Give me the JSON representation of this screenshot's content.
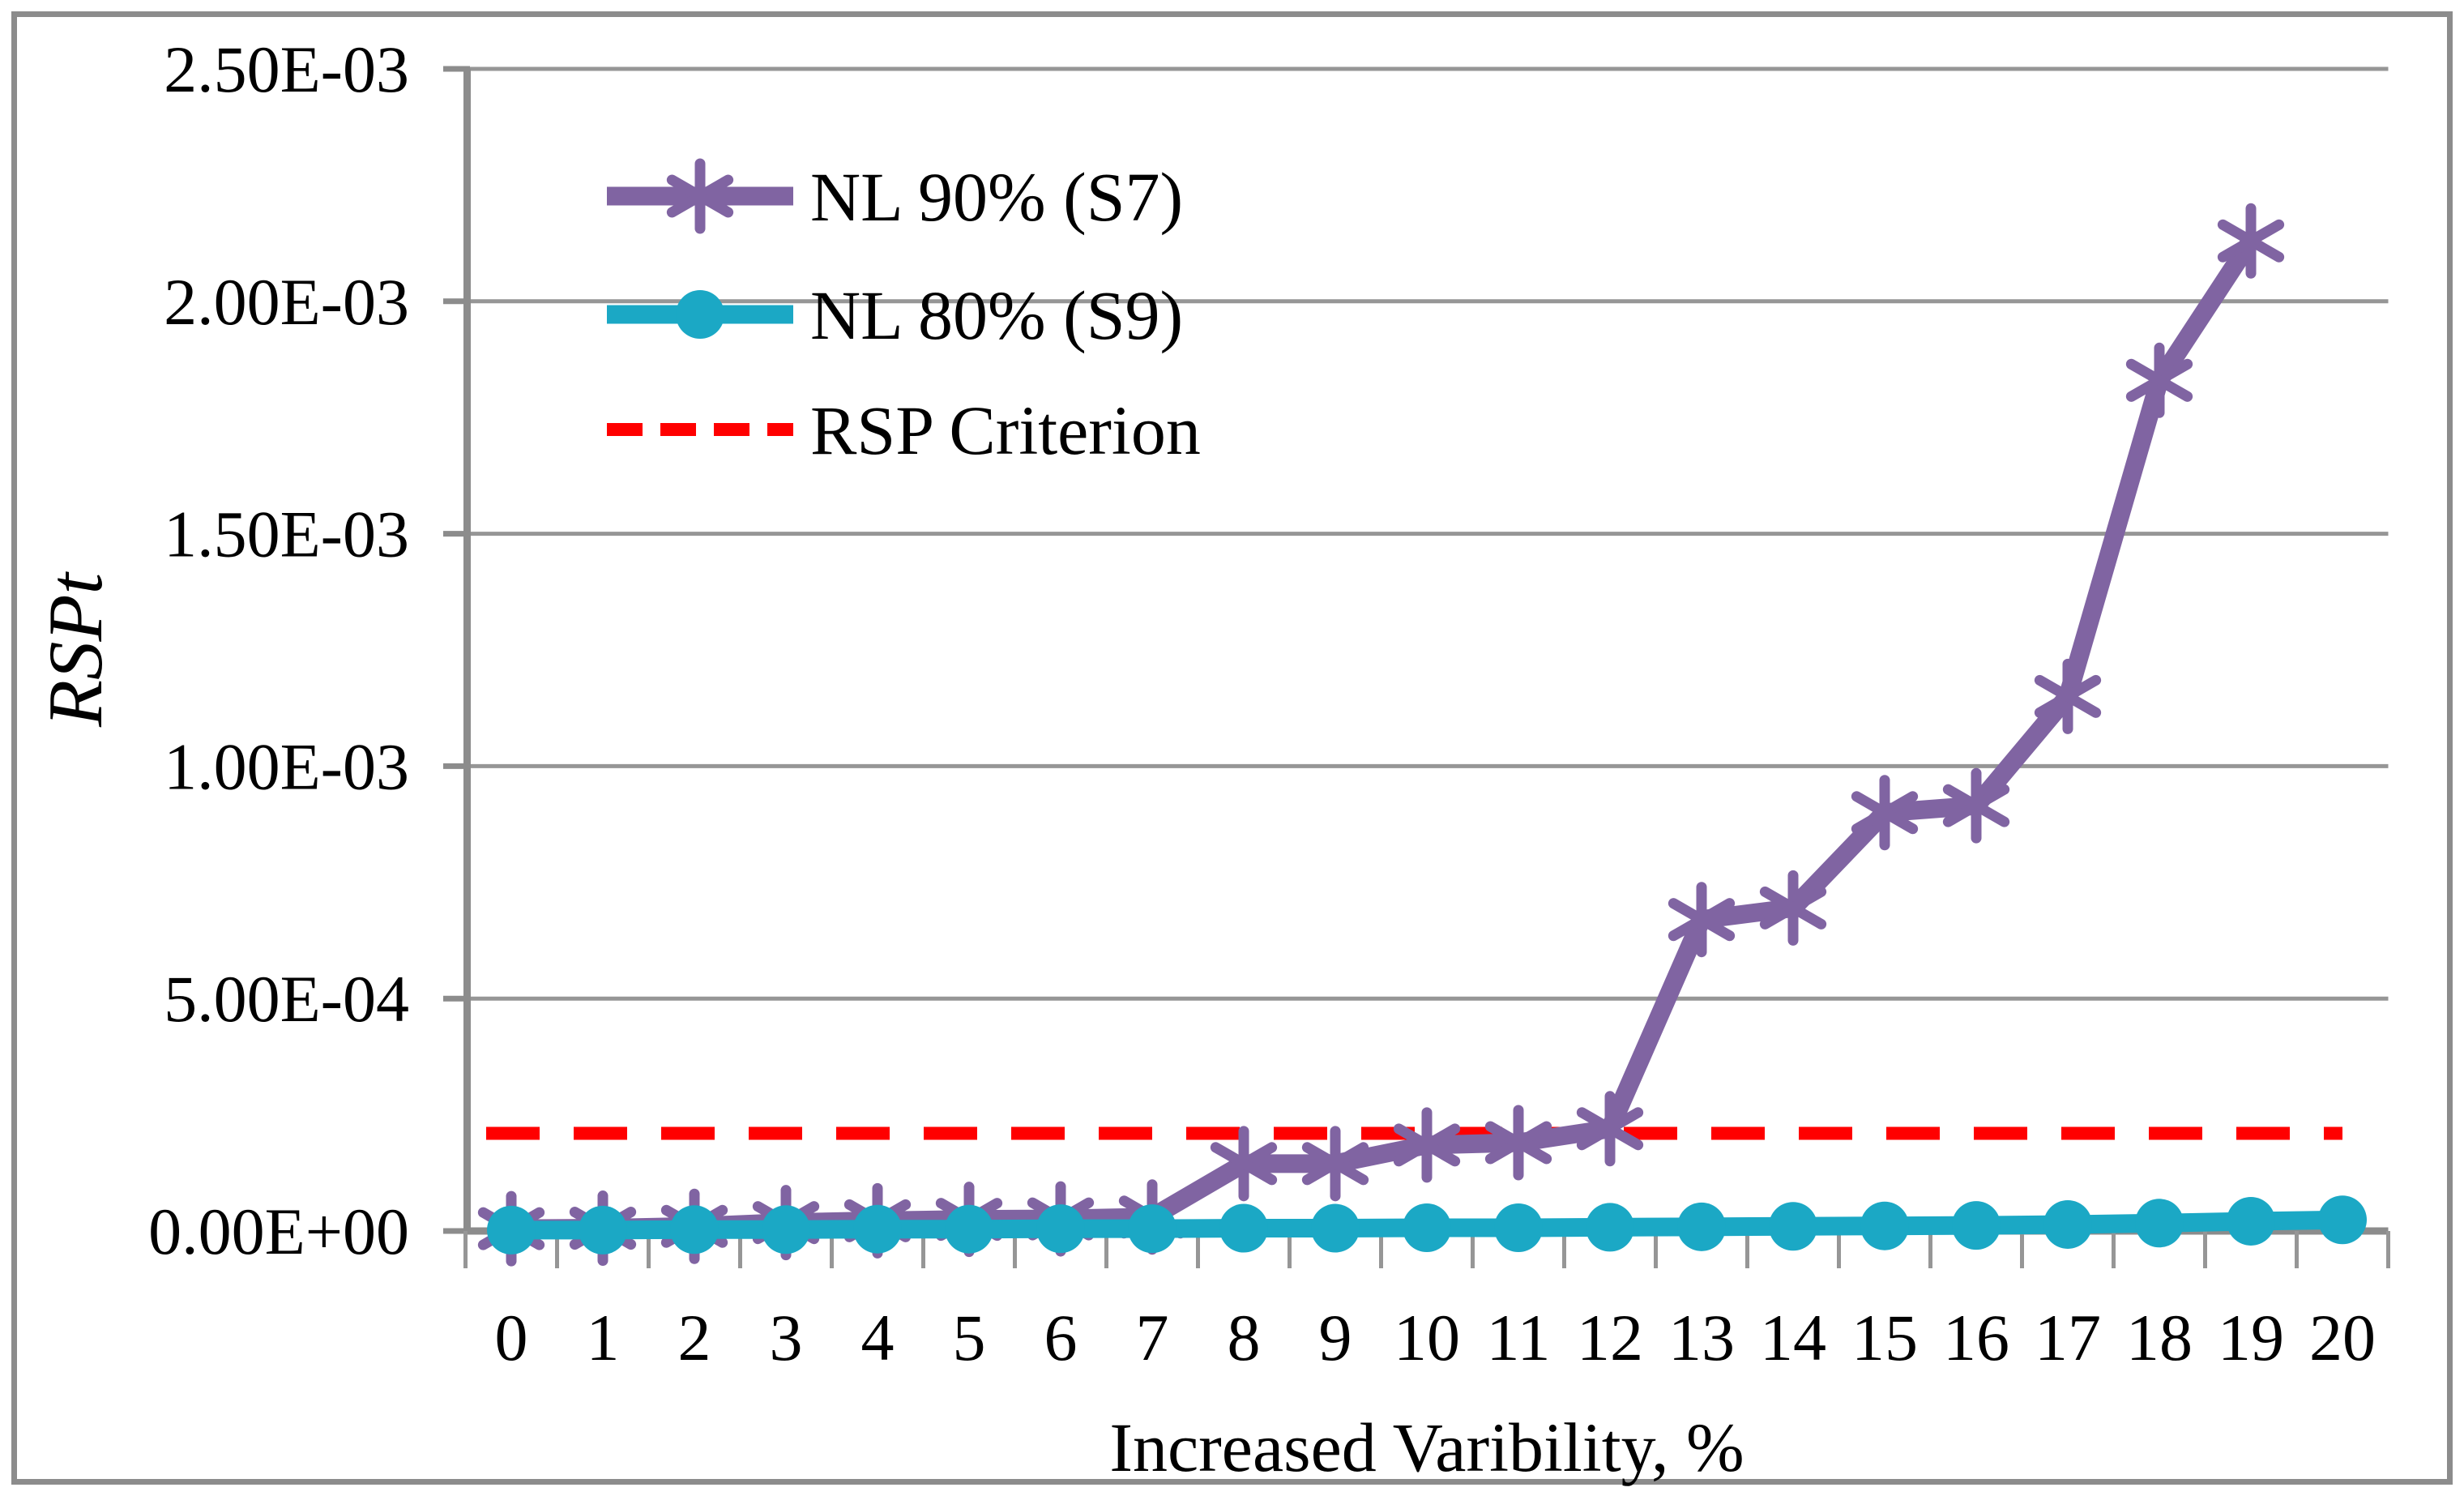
{
  "figure": {
    "background": "#FFFFFF",
    "frame_color": "#8C8C8C",
    "gridline_color": "#969696",
    "axis_color": "#8C8C8C",
    "text_color": "#000000"
  },
  "chart_data": {
    "type": "line",
    "title": "",
    "xlabel": "Increased Varibility, %",
    "ylabel": "RSPt",
    "x_tick_labels": [
      "0",
      "1",
      "2",
      "3",
      "4",
      "5",
      "6",
      "7",
      "8",
      "9",
      "10",
      "11",
      "12",
      "13",
      "14",
      "15",
      "16",
      "17",
      "18",
      "19",
      "20"
    ],
    "y_tick_labels": [
      "0.00E+00",
      "5.00E-04",
      "1.00E-03",
      "1.50E-03",
      "2.00E-03",
      "2.50E-03"
    ],
    "y_ticks": [
      0,
      0.0005,
      0.001,
      0.0015,
      0.002,
      0.0025
    ],
    "ylim": [
      0,
      0.0025
    ],
    "grid": true,
    "legend_position": "upper-left-inside",
    "series": [
      {
        "name": "NL 90% (S7)",
        "color": "#8064A2",
        "marker": "asterisk",
        "line_style": "solid",
        "x": [
          0,
          1,
          2,
          3,
          4,
          5,
          6,
          7,
          8,
          9,
          10,
          11,
          12,
          13,
          14,
          15,
          16,
          17,
          18,
          19
        ],
        "values": [
          5e-06,
          6e-06,
          1e-05,
          1.8e-05,
          2.2e-05,
          2.5e-05,
          2.6e-05,
          3e-05,
          0.000145,
          0.000145,
          0.000185,
          0.00019,
          0.00022,
          0.00067,
          0.000695,
          0.0009,
          0.000915,
          0.00115,
          0.00183,
          0.00213
        ]
      },
      {
        "name": "NL 80% (S9)",
        "color": "#1BA8C5",
        "marker": "circle",
        "line_style": "solid",
        "x": [
          0,
          1,
          2,
          3,
          4,
          5,
          6,
          7,
          8,
          9,
          10,
          11,
          12,
          13,
          14,
          15,
          16,
          17,
          18,
          19,
          20
        ],
        "values": [
          2e-06,
          2e-06,
          3e-06,
          3e-06,
          4e-06,
          4e-06,
          5e-06,
          5e-06,
          6e-06,
          6e-06,
          7e-06,
          7e-06,
          8e-06,
          9e-06,
          1e-05,
          1.1e-05,
          1.2e-05,
          1.4e-05,
          1.7e-05,
          2.1e-05,
          2.4e-05
        ]
      },
      {
        "name": "RSP Criterion",
        "color": "#FF0000",
        "marker": "none",
        "line_style": "dashed",
        "constant_value": 0.00021,
        "x_span": [
          0,
          20
        ]
      }
    ]
  }
}
